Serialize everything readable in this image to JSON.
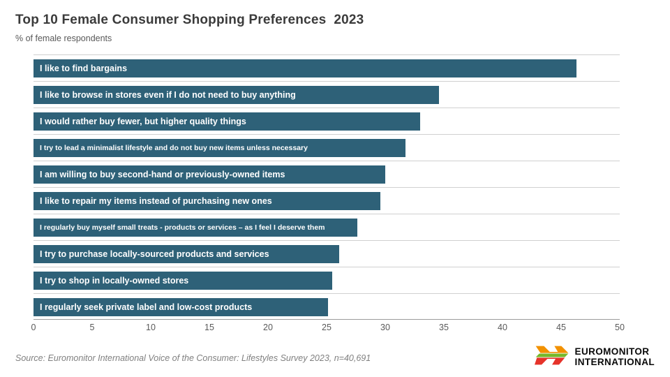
{
  "header": {
    "title": "Top 10 Female Consumer Shopping Preferences  2023",
    "subtitle": "% of female respondents"
  },
  "chart_data": {
    "type": "bar",
    "orientation": "horizontal",
    "title": "Top 10 Female Consumer Shopping Preferences 2023",
    "subtitle": "% of female respondents",
    "categories": [
      "I like to find bargains",
      "I like to browse in stores even if I do not need to buy anything",
      "I would rather buy fewer, but higher quality things",
      "I try to lead a minimalist lifestyle and do not buy new items unless necessary",
      "I am willing to buy second-hand or previously-owned items",
      "I like to repair my items instead of purchasing new ones",
      "I regularly buy myself small treats  - products or services  – as I feel I deserve them",
      "I try to purchase locally-sourced products and services",
      "I try to shop in locally-owned stores",
      "I regularly seek private label and low-cost products"
    ],
    "values": [
      46.3,
      34.6,
      33.0,
      31.7,
      30.0,
      29.6,
      27.6,
      26.1,
      25.5,
      25.1
    ],
    "xlim": [
      0,
      50
    ],
    "x_ticks": [
      0,
      5,
      10,
      15,
      20,
      25,
      30,
      35,
      40,
      45,
      50
    ],
    "bar_color": "#2e6178",
    "bar_label_color": "#ffffff",
    "grid": "horizontal row separator lines",
    "legend": "none"
  },
  "footer": {
    "source": "Source: Euromonitor International Voice of the Consumer: Lifestyles Survey 2023, n=40,691",
    "logo": {
      "line1": "EUROMONITOR",
      "line2": "INTERNATIONAL",
      "icon": "euromonitor-arrows-icon",
      "icon_colors": [
        "#f29100",
        "#76b82a",
        "#e6332a"
      ]
    }
  }
}
